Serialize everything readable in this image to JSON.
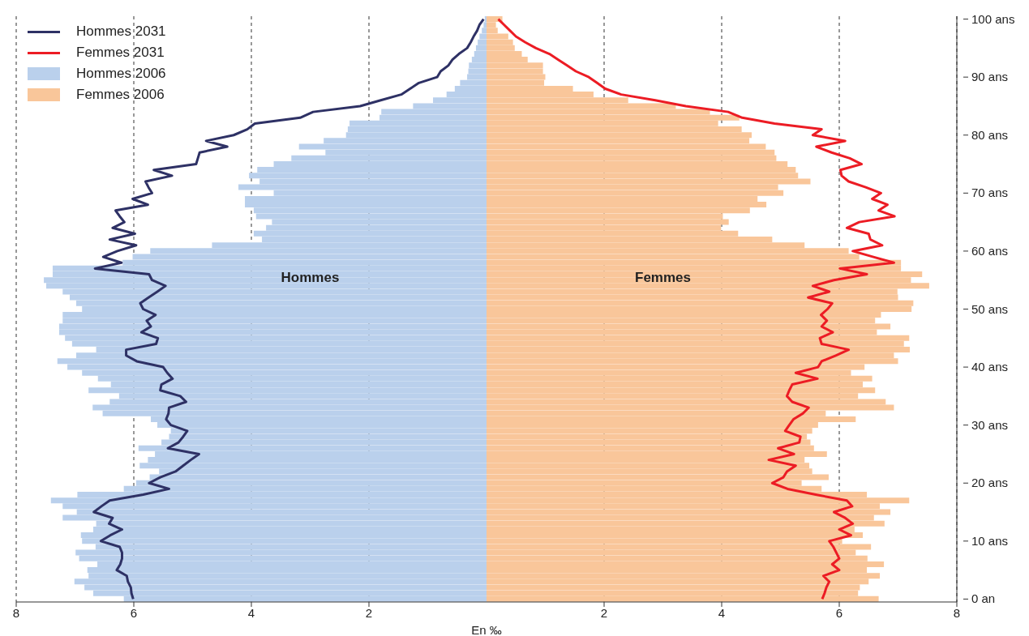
{
  "chart_data": {
    "type": "bar",
    "orientation": "horizontal",
    "stacked": true,
    "xlabel": "En ‰",
    "categories": [
      "100 ans",
      null,
      null,
      null,
      null,
      null,
      null,
      null,
      null,
      null,
      "90 ans",
      null,
      null,
      null,
      null,
      null,
      null,
      null,
      null,
      null,
      "80 ans",
      null,
      null,
      null,
      null,
      null,
      null,
      null,
      null,
      null,
      "70 ans",
      null,
      null,
      null,
      null,
      null,
      null,
      null,
      null,
      null,
      "60 ans",
      null,
      null,
      null,
      null,
      null,
      null,
      null,
      null,
      null,
      "50 ans",
      null,
      null,
      null,
      null,
      null,
      null,
      null,
      null,
      null,
      "40 ans",
      null,
      null,
      null,
      null,
      null,
      null,
      null,
      null,
      null,
      "30 ans",
      null,
      null,
      null,
      null,
      null,
      null,
      null,
      null,
      null,
      "20 ans",
      null,
      null,
      null,
      null,
      null,
      null,
      null,
      null,
      null,
      "10 ans",
      null,
      null,
      null,
      null,
      null,
      null,
      null,
      null,
      null,
      "0 an"
    ],
    "xlim": [
      -8,
      8
    ],
    "xticks": [
      {
        "value": -8,
        "label": "8"
      },
      {
        "value": -6,
        "label": "6"
      },
      {
        "value": -4,
        "label": "4"
      },
      {
        "value": -2,
        "label": "2"
      },
      2,
      4,
      6,
      8
    ],
    "grid": "x",
    "legend": "top left",
    "annotations": [
      {
        "text": "Hommes",
        "x": -3
      },
      {
        "text": "Femmes",
        "x": 3
      }
    ],
    "series": [
      {
        "name": "Hommes 2031",
        "type": "line",
        "color": "#2e3165",
        "values": [
          -0.05,
          -0.12,
          -0.16,
          -0.22,
          -0.27,
          -0.33,
          -0.47,
          -0.58,
          -0.65,
          -0.78,
          -0.84,
          -1.15,
          -1.3,
          -1.45,
          -1.8,
          -2.15,
          -2.95,
          -3.17,
          -3.94,
          -4.07,
          -4.3,
          -4.77,
          -4.41,
          -4.88,
          -4.91,
          -4.94,
          -5.66,
          -5.35,
          -5.8,
          -5.75,
          -5.69,
          -6.02,
          -5.76,
          -6.31,
          -6.24,
          -6.16,
          -6.36,
          -5.98,
          -6.41,
          -5.96,
          -6.28,
          -6.52,
          -6.21,
          -6.66,
          -5.74,
          -5.69,
          -5.46,
          -5.6,
          -5.75,
          -5.89,
          -5.84,
          -5.63,
          -5.78,
          -5.71,
          -5.87,
          -5.59,
          -5.62,
          -6.13,
          -6.13,
          -5.95,
          -5.5,
          -5.43,
          -5.34,
          -5.53,
          -5.55,
          -5.21,
          -5.11,
          -5.4,
          -5.41,
          -5.45,
          -5.37,
          -5.09,
          -5.16,
          -5.24,
          -5.42,
          -4.89,
          -5.03,
          -5.16,
          -5.29,
          -5.55,
          -5.74,
          -5.4,
          -5.84,
          -6.41,
          -6.55,
          -6.68,
          -6.36,
          -6.42,
          -6.2,
          -6.4,
          -6.56,
          -6.24,
          -6.2,
          -6.2,
          -6.23,
          -6.29,
          -6.12,
          -6.1,
          -6.05,
          -6.04,
          -6.01
        ]
      },
      {
        "name": "Femmes 2031",
        "type": "line",
        "color": "#ec1c24",
        "values": [
          0.2,
          0.3,
          0.4,
          0.5,
          0.66,
          0.84,
          1.07,
          1.22,
          1.37,
          1.52,
          1.74,
          1.88,
          2.02,
          2.29,
          2.87,
          3.39,
          4.11,
          4.35,
          4.9,
          5.7,
          5.55,
          6.1,
          5.61,
          5.87,
          6.18,
          6.38,
          6.02,
          6.04,
          6.16,
          6.45,
          6.71,
          6.56,
          6.82,
          6.67,
          6.94,
          6.34,
          6.13,
          6.5,
          6.53,
          6.73,
          6.23,
          6.58,
          6.93,
          6.01,
          6.47,
          5.91,
          5.55,
          5.83,
          5.47,
          5.88,
          5.8,
          5.69,
          5.79,
          5.7,
          5.89,
          5.67,
          5.7,
          6.16,
          5.94,
          5.7,
          5.64,
          5.26,
          5.63,
          5.2,
          5.15,
          5.11,
          5.2,
          5.48,
          5.38,
          5.22,
          5.15,
          5.08,
          5.34,
          5.32,
          4.96,
          5.23,
          4.8,
          5.26,
          5.11,
          5.05,
          4.86,
          5.12,
          5.6,
          6.13,
          6.22,
          5.91,
          6.1,
          6.23,
          6.0,
          6.2,
          5.83,
          5.9,
          5.95,
          6.0,
          5.88,
          6.0,
          5.73,
          5.83,
          5.78,
          5.75,
          5.71
        ]
      },
      {
        "name": "Hommes 2006",
        "type": "bar",
        "color": "#bad0ec",
        "values": [
          -0.03,
          -0.05,
          -0.08,
          -0.12,
          -0.15,
          -0.18,
          -0.21,
          -0.25,
          -0.3,
          -0.31,
          -0.33,
          -0.45,
          -0.54,
          -0.68,
          -0.91,
          -1.25,
          -1.79,
          -1.82,
          -2.33,
          -2.36,
          -2.39,
          -2.77,
          -3.19,
          -2.74,
          -3.32,
          -3.62,
          -3.9,
          -4.04,
          -3.86,
          -4.22,
          -3.62,
          -4.11,
          -4.11,
          -3.96,
          -3.92,
          -3.65,
          -3.75,
          -3.96,
          -3.82,
          -4.67,
          -5.72,
          -6.02,
          -6.19,
          -7.38,
          -7.38,
          -7.53,
          -7.49,
          -7.21,
          -7.09,
          -6.98,
          -6.88,
          -7.21,
          -7.21,
          -7.27,
          -7.27,
          -7.17,
          -7.05,
          -6.64,
          -6.98,
          -7.3,
          -7.13,
          -6.88,
          -6.61,
          -6.39,
          -6.77,
          -6.25,
          -6.41,
          -6.7,
          -6.53,
          -5.71,
          -5.6,
          -5.37,
          -5.4,
          -5.53,
          -5.92,
          -5.64,
          -5.76,
          -5.9,
          -5.57,
          -5.73,
          -5.96,
          -6.17,
          -6.96,
          -7.41,
          -7.21,
          -6.97,
          -7.21,
          -6.64,
          -6.69,
          -6.9,
          -6.88,
          -6.65,
          -6.99,
          -6.93,
          -6.62,
          -6.79,
          -6.77,
          -7.01,
          -6.84,
          -6.69,
          -6.17
        ]
      },
      {
        "name": "Femmes 2006",
        "type": "bar",
        "color": "#f9c69a",
        "values": [
          0.27,
          0.16,
          0.19,
          0.37,
          0.45,
          0.48,
          0.6,
          0.7,
          0.96,
          0.96,
          1.0,
          0.98,
          1.47,
          1.82,
          2.41,
          3.22,
          3.8,
          4.3,
          3.94,
          4.34,
          4.51,
          4.47,
          4.75,
          4.9,
          4.93,
          5.12,
          5.26,
          5.3,
          5.51,
          4.96,
          5.05,
          4.61,
          4.76,
          4.48,
          4.02,
          4.12,
          3.99,
          4.28,
          4.86,
          5.41,
          6.16,
          6.34,
          7.05,
          7.05,
          7.41,
          7.22,
          7.53,
          6.99,
          7.0,
          7.26,
          7.23,
          6.71,
          6.61,
          6.87,
          6.64,
          7.19,
          7.1,
          7.2,
          6.93,
          7.0,
          6.43,
          6.2,
          6.56,
          6.4,
          6.61,
          6.32,
          6.79,
          6.93,
          5.77,
          6.28,
          5.64,
          5.54,
          5.45,
          5.51,
          5.57,
          5.79,
          5.41,
          5.49,
          5.54,
          5.82,
          5.36,
          5.7,
          6.47,
          7.19,
          6.69,
          6.87,
          6.59,
          6.77,
          6.26,
          6.4,
          6.05,
          6.54,
          6.28,
          6.48,
          6.76,
          6.47,
          6.69,
          6.5,
          6.35,
          6.32,
          6.67
        ]
      }
    ]
  }
}
